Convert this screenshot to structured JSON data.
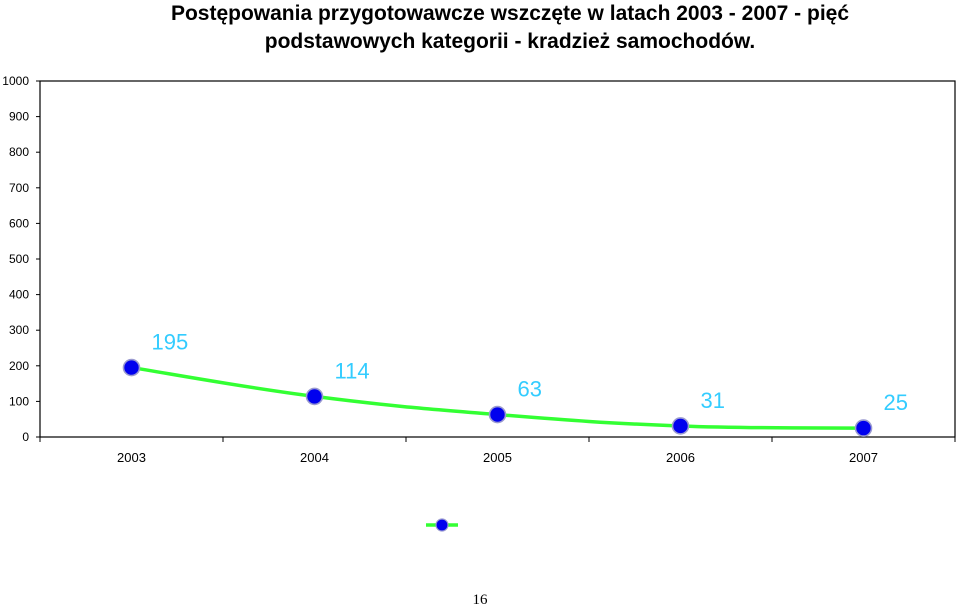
{
  "chart_data": {
    "type": "line",
    "title": [
      "Postępowania przygotowawcze wszczęte w latach 2003 - 2007 - pięć",
      "podstawowych kategorii - kradzież samochodów."
    ],
    "categories": [
      "2003",
      "2004",
      "2005",
      "2006",
      "2007"
    ],
    "series": [
      {
        "values": [
          195,
          114,
          63,
          31,
          25
        ],
        "data_labels": [
          "195",
          "114",
          "63",
          "31",
          "25"
        ],
        "line_color": "#33ff33",
        "marker_color": "#0000ee"
      }
    ],
    "xlabel": "",
    "ylabel": "",
    "ylim": [
      0,
      1000
    ],
    "yticks": [
      "0",
      "100",
      "200",
      "300",
      "400",
      "500",
      "600",
      "700",
      "800",
      "900",
      "1000"
    ],
    "grid": false,
    "legend": "bottom-center",
    "label_color": "#33ccff"
  },
  "page": {
    "number": "16"
  }
}
